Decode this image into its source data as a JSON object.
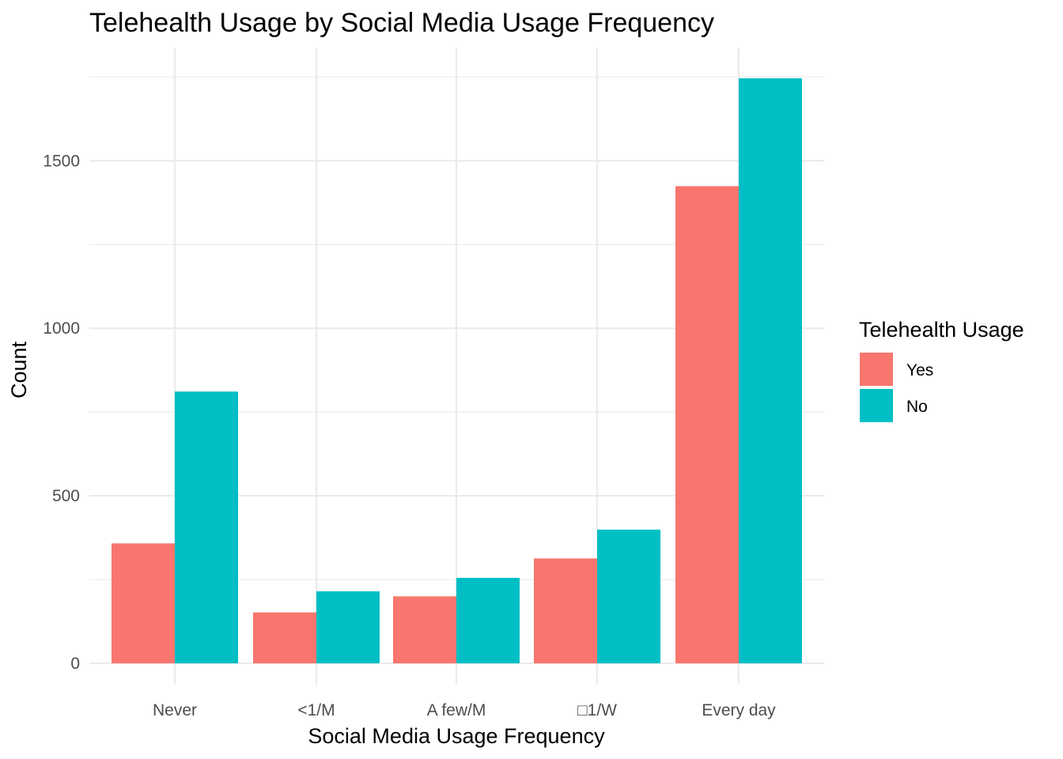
{
  "chart_data": {
    "type": "bar",
    "title": "Telehealth Usage by Social Media Usage Frequency",
    "xlabel": "Social Media Usage Frequency",
    "ylabel": "Count",
    "categories": [
      "Never",
      "<1/M",
      "A few/M",
      "□1/W",
      "Every day"
    ],
    "series": [
      {
        "name": "Yes",
        "color": "#F8766D",
        "values": [
          358,
          152,
          200,
          313,
          1424
        ]
      },
      {
        "name": "No",
        "color": "#00BFC4",
        "values": [
          811,
          215,
          255,
          399,
          1746
        ]
      }
    ],
    "ylim": [
      0,
      1746
    ],
    "yticks": [
      0,
      500,
      1000,
      1500
    ],
    "grid": true,
    "legend": {
      "title": "Telehealth Usage",
      "position": "right",
      "entries": [
        "Yes",
        "No"
      ]
    }
  }
}
